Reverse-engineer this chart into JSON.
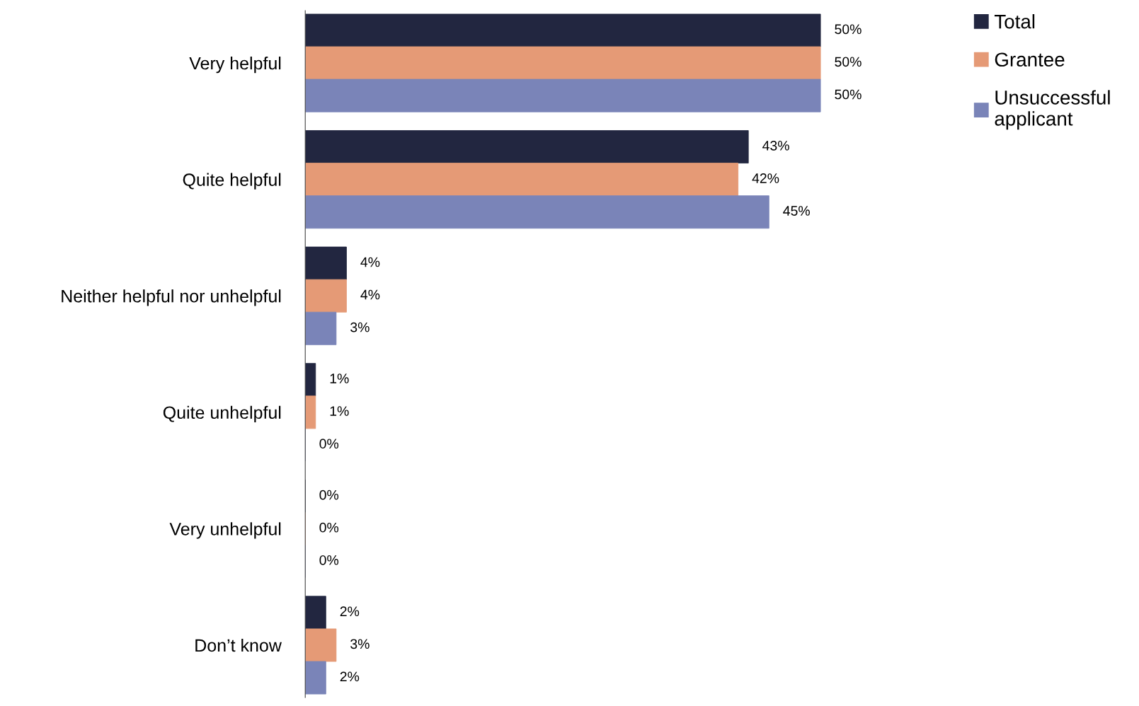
{
  "chart_data": {
    "type": "bar",
    "orientation": "horizontal",
    "categories": [
      "Very helpful",
      "Quite helpful",
      "Neither helpful nor unhelpful",
      "Quite unhelpful",
      "Very unhelpful",
      "Don’t know"
    ],
    "series": [
      {
        "name": "Total",
        "color": "#222640",
        "values": [
          50,
          43,
          4,
          1,
          0,
          2
        ],
        "value_labels": [
          "50%",
          "43%",
          "4%",
          "1%",
          "0%",
          "2%"
        ]
      },
      {
        "name": "Grantee",
        "color": "#e59a76",
        "values": [
          50,
          42,
          4,
          1,
          0,
          3
        ],
        "value_labels": [
          "50%",
          "42%",
          "4%",
          "1%",
          "0%",
          "3%"
        ]
      },
      {
        "name": "Unsuccessful\napplicant",
        "color": "#7a84b8",
        "values": [
          50,
          45,
          3,
          0,
          0,
          2
        ],
        "value_labels": [
          "50%",
          "45%",
          "3%",
          "0%",
          "0%",
          "2%"
        ]
      }
    ],
    "legend": "top right",
    "grid": false,
    "tick_labels": "y"
  }
}
